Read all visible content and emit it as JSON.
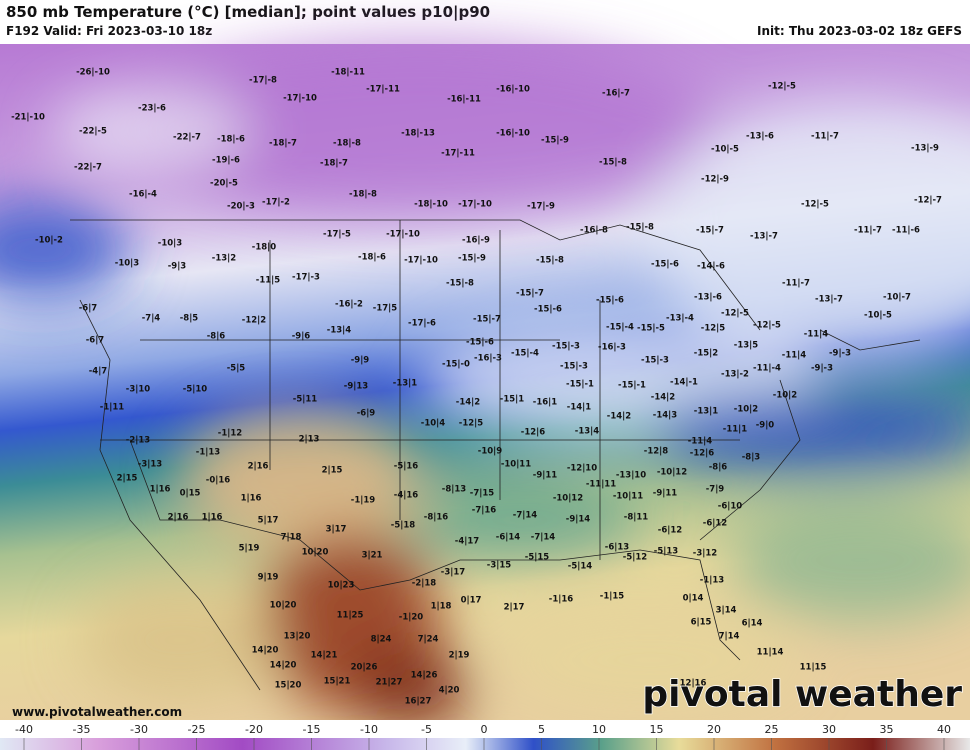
{
  "header": {
    "title": "850 mb Temperature (°C) [median]; point values p10|p90",
    "valid": "F192 Valid: Fri 2023-03-10 18z",
    "init": "Init: Thu 2023-03-02 18z GEFS"
  },
  "map": {
    "point_values": [
      "-26|-10",
      "-23|-6",
      "-21|-10",
      "-22|-5",
      "-22|-7",
      "-22|-7",
      "-18|-6",
      "-19|-6",
      "-20|-5",
      "-20|-3",
      "-17|-2",
      "-16|-4",
      "-17|-8",
      "-17|-10",
      "-18|-7",
      "-18|-8",
      "-18|-7",
      "-18|-8",
      "-18|-11",
      "-17|-11",
      "-18|-13",
      "-16|-11",
      "-16|-10",
      "-16|-10",
      "-17|-11",
      "-18|-10",
      "-17|-10",
      "-17|-9",
      "-15|-9",
      "-15|-8",
      "-16|-7",
      "-12|-5",
      "-13|-6",
      "-11|-7",
      "-10|-5",
      "-13|-9",
      "-12|-9",
      "-12|-5",
      "-12|-7",
      "-11|-7",
      "-11|-6",
      "-15|-7",
      "-13|-7",
      "-10|-2",
      "-10|3",
      "-13|2",
      "-18|0",
      "-17|-5",
      "-17|-10",
      "-16|-9",
      "-16|-8",
      "-15|-8",
      "-10|3",
      "-9|3",
      "-11|5",
      "-17|-3",
      "-18|-6",
      "-17|-10",
      "-15|-9",
      "-15|-8",
      "-15|-6",
      "-14|-6",
      "-11|-7",
      "-13|-7",
      "-10|-7",
      "-15|-8",
      "-15|-7",
      "-15|-6",
      "-15|-6",
      "-13|-6",
      "-12|-5",
      "-6|7",
      "-7|4",
      "-8|5",
      "-12|2",
      "-16|-2",
      "-17|5",
      "-17|-6",
      "-15|-7",
      "-15|-4",
      "-15|-5",
      "-13|-4",
      "-12|5",
      "-12|-5",
      "-10|-5",
      "-6|7",
      "-8|6",
      "-9|6",
      "-13|4",
      "-11|4",
      "-15|-6",
      "-15|-4",
      "-15|-3",
      "-16|-3",
      "-15|2",
      "-13|5",
      "-11|4",
      "-9|-3",
      "-4|7",
      "-5|5",
      "-9|9",
      "-15|-0",
      "-16|-3",
      "-15|-3",
      "-15|-3",
      "-13|-2",
      "-11|-4",
      "-9|-3",
      "-3|10",
      "-5|10",
      "-9|13",
      "-13|1",
      "-15|-1",
      "-15|-1",
      "-14|-1",
      "-5|11",
      "-14|2",
      "-15|1",
      "-16|1",
      "-14|1",
      "-14|2",
      "-13|1",
      "-10|2",
      "-10|2",
      "-1|11",
      "-6|9",
      "-10|4",
      "-12|5",
      "-14|2",
      "-14|3",
      "-11|1",
      "-9|0",
      "-2|13",
      "-1|12",
      "2|13",
      "-12|6",
      "-13|4",
      "-12|8",
      "-12|6",
      "-11|4",
      "-8|3",
      "-10|9",
      "-1|13",
      "-3|13",
      "2|16",
      "2|15",
      "-5|16",
      "-10|11",
      "-12|10",
      "-13|10",
      "-10|12",
      "-8|6",
      "2|15",
      "-0|16",
      "-9|11",
      "-11|11",
      "-7|9",
      "1|16",
      "0|15",
      "1|16",
      "-1|19",
      "-4|16",
      "-8|13",
      "-7|15",
      "-10|12",
      "-10|11",
      "-9|11",
      "-6|10",
      "2|16",
      "1|16",
      "5|17",
      "3|17",
      "-5|18",
      "-8|16",
      "-7|16",
      "-7|14",
      "-9|14",
      "-8|11",
      "-6|12",
      "-6|12",
      "7|18",
      "-4|17",
      "-6|14",
      "-7|14",
      "-6|13",
      "-5|12",
      "5|19",
      "10|20",
      "3|21",
      "-5|15",
      "-5|13",
      "-3|12",
      "-3|15",
      "-5|14",
      "9|19",
      "-3|17",
      "-2|18",
      "-1|13",
      "10|23",
      "0|17",
      "-1|16",
      "-1|15",
      "2|17",
      "0|14",
      "10|20",
      "11|25",
      "-1|20",
      "3|14",
      "1|18",
      "6|15",
      "6|14",
      "13|20",
      "8|24",
      "7|24",
      "7|14",
      "14|20",
      "14|21",
      "2|19",
      "14|20",
      "20|26",
      "14|26",
      "11|14",
      "11|15",
      "15|20",
      "15|21",
      "21|27",
      "4|20",
      "16|27",
      "12|16"
    ]
  },
  "footer": {
    "website": "www.pivotalweather.com",
    "logo": "pivotal weather"
  },
  "colorbar": {
    "ticks": [
      -40,
      -35,
      -30,
      -25,
      -20,
      -15,
      -10,
      -5,
      0,
      5,
      10,
      15,
      20,
      25,
      30,
      35,
      40
    ]
  }
}
